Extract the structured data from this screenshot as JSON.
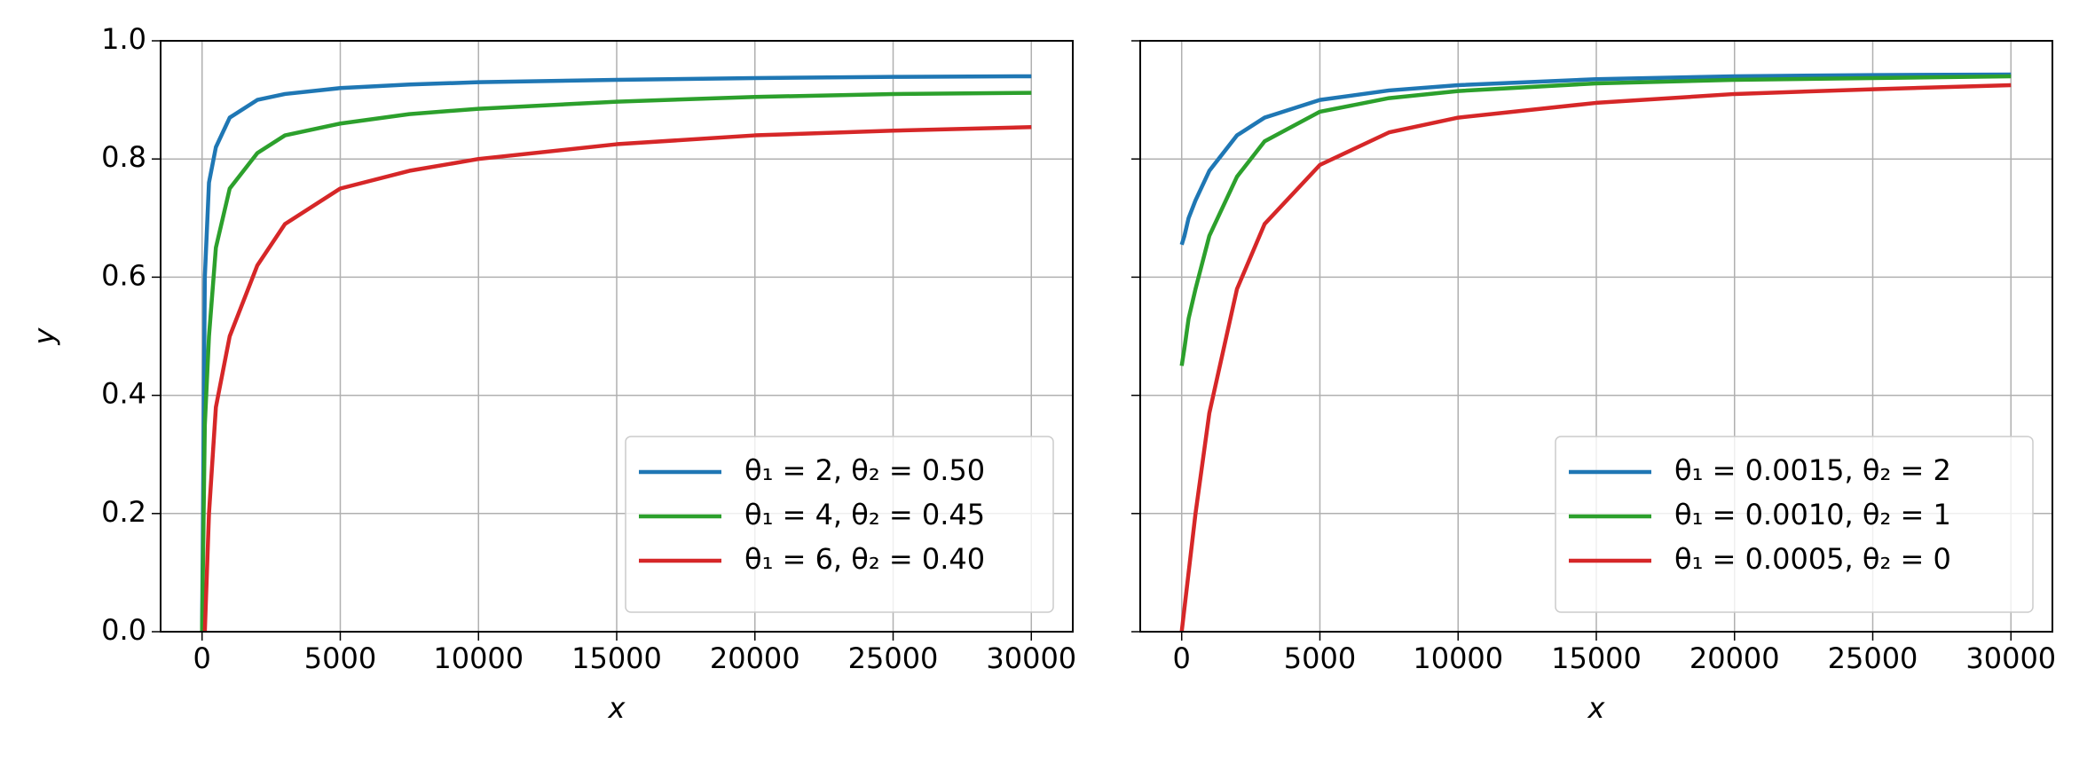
{
  "chart_data": [
    {
      "type": "line",
      "x_label": "x",
      "y_label": "y",
      "x": [
        0,
        100,
        250,
        500,
        1000,
        2000,
        3000,
        5000,
        7500,
        10000,
        15000,
        20000,
        25000,
        30000
      ],
      "series": [
        {
          "name": "θ₁ = 2, θ₂ = 0.50",
          "color": "#1f77b4",
          "values": [
            0.0,
            0.6,
            0.76,
            0.82,
            0.87,
            0.9,
            0.91,
            0.92,
            0.926,
            0.93,
            0.934,
            0.937,
            0.939,
            0.94
          ]
        },
        {
          "name": "θ₁ = 4, θ₂ = 0.45",
          "color": "#2ca02c",
          "values": [
            0.0,
            0.35,
            0.5,
            0.65,
            0.75,
            0.81,
            0.84,
            0.86,
            0.876,
            0.885,
            0.897,
            0.905,
            0.91,
            0.912
          ]
        },
        {
          "name": "θ₁ = 6, θ₂ = 0.40",
          "color": "#d62728",
          "values": [
            null,
            0.0,
            0.2,
            0.38,
            0.5,
            0.62,
            0.69,
            0.75,
            0.78,
            0.8,
            0.825,
            0.84,
            0.848,
            0.854
          ]
        }
      ],
      "xlim": [
        -1500,
        31500
      ],
      "ylim": [
        0,
        1
      ],
      "xticks": [
        0,
        5000,
        10000,
        15000,
        20000,
        25000,
        30000
      ],
      "yticks": [
        {
          "value": 0,
          "label": "0.0"
        },
        0.2,
        0.4,
        0.6,
        0.8,
        {
          "value": 1,
          "label": "1.0"
        }
      ],
      "grid": true,
      "legend": "lower right",
      "show_ytick_labels": true
    },
    {
      "type": "line",
      "x_label": "x",
      "x": [
        0,
        100,
        250,
        500,
        1000,
        2000,
        3000,
        5000,
        7500,
        10000,
        15000,
        20000,
        25000,
        30000
      ],
      "series": [
        {
          "name": "θ₁ = 0.0015, θ₂ = 2",
          "color": "#1f77b4",
          "values": [
            0.655,
            0.67,
            0.7,
            0.73,
            0.78,
            0.84,
            0.87,
            0.9,
            0.916,
            0.925,
            0.935,
            0.94,
            0.942,
            0.943
          ]
        },
        {
          "name": "θ₁ = 0.0010, θ₂ = 1",
          "color": "#2ca02c",
          "values": [
            0.45,
            0.48,
            0.53,
            0.58,
            0.67,
            0.77,
            0.83,
            0.88,
            0.903,
            0.915,
            0.928,
            0.934,
            0.937,
            0.94
          ]
        },
        {
          "name": "θ₁ = 0.0005, θ₂ = 0",
          "color": "#d62728",
          "values": [
            0.0,
            0.04,
            0.1,
            0.2,
            0.37,
            0.58,
            0.69,
            0.79,
            0.845,
            0.87,
            0.895,
            0.91,
            0.918,
            0.925
          ]
        }
      ],
      "xlim": [
        -1500,
        31500
      ],
      "ylim": [
        0,
        1
      ],
      "xticks": [
        0,
        5000,
        10000,
        15000,
        20000,
        25000,
        30000
      ],
      "yticks": [
        0,
        0.2,
        0.4,
        0.6,
        0.8,
        1
      ],
      "grid": true,
      "legend": "lower right",
      "show_ytick_labels": false
    }
  ]
}
